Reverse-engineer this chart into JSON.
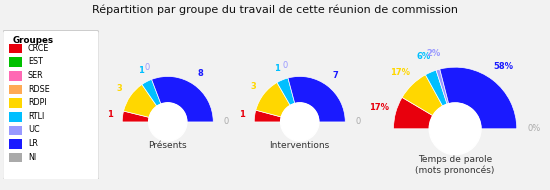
{
  "title": "Répartition par groupe du travail de cette réunion de commission",
  "groups": [
    "CRCE",
    "EST",
    "SER",
    "RDSE",
    "RDPI",
    "RTLI",
    "UC",
    "LR",
    "NI"
  ],
  "colors": [
    "#e8000d",
    "#00c000",
    "#ff69b4",
    "#ffaa55",
    "#ffd700",
    "#00bfff",
    "#9999ff",
    "#1a1aff",
    "#aaaaaa"
  ],
  "charts": [
    {
      "title": "Présents",
      "values": [
        1,
        0,
        0,
        0,
        3,
        1,
        0,
        8,
        0
      ],
      "show_labels": [
        true,
        false,
        false,
        false,
        true,
        true,
        true,
        true,
        true
      ]
    },
    {
      "title": "Interventions",
      "values": [
        1,
        0,
        0,
        0,
        3,
        1,
        0,
        7,
        0
      ],
      "show_labels": [
        true,
        false,
        false,
        false,
        true,
        true,
        true,
        true,
        true
      ]
    },
    {
      "title": "Temps de parole\n(mots prononcés)",
      "values": [
        17,
        0,
        0,
        0,
        17,
        6,
        2,
        58,
        0
      ],
      "show_labels": [
        true,
        false,
        false,
        false,
        true,
        true,
        true,
        true,
        true
      ],
      "use_percent": true
    }
  ],
  "background_color": "#f2f2f2",
  "legend_bg": "#ffffff",
  "legend_title": "Groupes",
  "outer_r": 1.0,
  "inner_r": 0.42,
  "label_r": 1.28,
  "title_fontsize": 8.0,
  "legend_fontsize": 5.8,
  "label_fontsize": 6.0,
  "chart_title_fontsize": 6.5
}
